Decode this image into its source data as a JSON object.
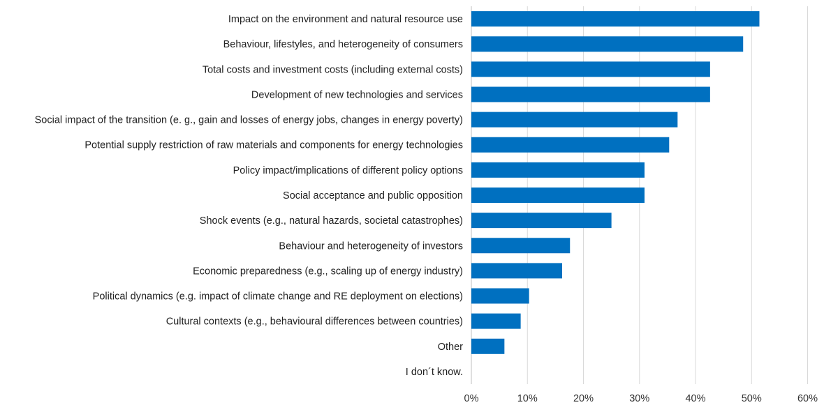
{
  "chart_data": {
    "type": "bar",
    "orientation": "horizontal",
    "categories": [
      "Impact on the environment and natural resource use",
      "Behaviour, lifestyles, and heterogeneity of consumers",
      "Total costs and investment costs (including external costs)",
      "Development of new technologies and services",
      "Social impact of the transition (e. g., gain and losses of energy jobs, changes in energy poverty)",
      "Potential supply restriction of raw materials and components for energy technologies",
      "Policy impact/implications of different policy options",
      "Social acceptance and public opposition",
      "Shock events (e.g., natural hazards, societal catastrophes)",
      "Behaviour and heterogeneity of investors",
      "Economic preparedness (e.g., scaling up of energy industry)",
      "Political dynamics (e.g. impact of climate change and RE deployment on elections)",
      "Cultural contexts (e.g., behavioural differences between countries)",
      "Other",
      "I don´t know."
    ],
    "values": [
      51.4,
      48.5,
      42.6,
      42.6,
      36.8,
      35.3,
      30.9,
      30.9,
      25.0,
      17.6,
      16.2,
      10.3,
      8.8,
      5.9,
      0
    ],
    "xlim": [
      0,
      60
    ],
    "xticks": [
      "0%",
      "10%",
      "20%",
      "30%",
      "40%",
      "50%",
      "60%"
    ],
    "title": "",
    "xlabel": "",
    "ylabel": "",
    "grid": "vertical",
    "legend": "none",
    "bar_color": "#0070C0",
    "grid_color": "#d9d9d9"
  }
}
